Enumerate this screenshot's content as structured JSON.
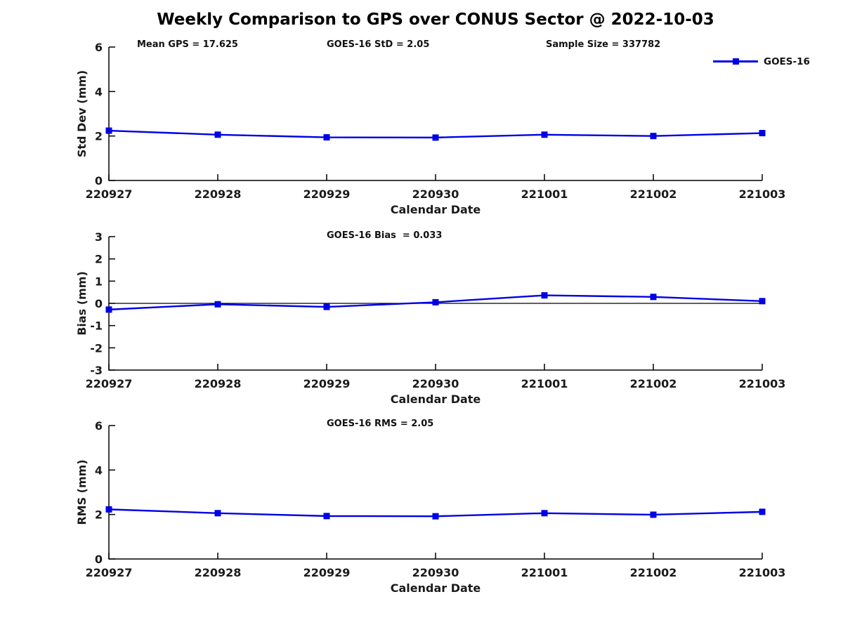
{
  "page": {
    "title": "Weekly Comparison to GPS over CONUS Sector @ 2022-10-03",
    "background": "#ffffff"
  },
  "legend": {
    "label": "GOES-16",
    "color": "#0000E6",
    "position": "top-right-outside"
  },
  "chart_data": [
    {
      "type": "line",
      "name": "std-dev",
      "categories": [
        "220927",
        "220928",
        "220929",
        "220930",
        "221001",
        "221002",
        "221003"
      ],
      "series": [
        {
          "name": "GOES-16",
          "color": "#0000E6",
          "marker": "square",
          "values": [
            2.24,
            2.06,
            1.94,
            1.93,
            2.06,
            2.0,
            2.13
          ]
        }
      ],
      "xlabel": "Calendar Date",
      "ylabel": "Std Dev (mm)",
      "ylim": [
        0,
        6
      ],
      "yticks": [
        0,
        2,
        4,
        6
      ],
      "grid": false,
      "annotations": [
        {
          "text": "Mean GPS = 17.625"
        },
        {
          "text": "GOES-16 StD = 2.05"
        },
        {
          "text": "Sample Size = 337782"
        }
      ]
    },
    {
      "type": "line",
      "name": "bias",
      "categories": [
        "220927",
        "220928",
        "220929",
        "220930",
        "221001",
        "221002",
        "221003"
      ],
      "series": [
        {
          "name": "GOES-16",
          "color": "#0000E6",
          "marker": "square",
          "values": [
            -0.28,
            -0.04,
            -0.16,
            0.05,
            0.36,
            0.29,
            0.1
          ]
        }
      ],
      "xlabel": "Calendar Date",
      "ylabel": "Bias (mm)",
      "ylim": [
        -3,
        3
      ],
      "yticks": [
        -3,
        -2,
        -1,
        0,
        1,
        2,
        3
      ],
      "zero_line": true,
      "grid": false,
      "annotations": [
        {
          "text": "GOES-16 Bias  = 0.033"
        }
      ]
    },
    {
      "type": "line",
      "name": "rms",
      "categories": [
        "220927",
        "220928",
        "220929",
        "220930",
        "221001",
        "221002",
        "221003"
      ],
      "series": [
        {
          "name": "GOES-16",
          "color": "#0000E6",
          "marker": "square",
          "values": [
            2.23,
            2.06,
            1.93,
            1.92,
            2.06,
            1.99,
            2.12
          ]
        }
      ],
      "xlabel": "Calendar Date",
      "ylabel": "RMS (mm)",
      "ylim": [
        0,
        6
      ],
      "yticks": [
        0,
        2,
        4,
        6
      ],
      "grid": false,
      "annotations": [
        {
          "text": "GOES-16 RMS = 2.05"
        }
      ]
    }
  ]
}
